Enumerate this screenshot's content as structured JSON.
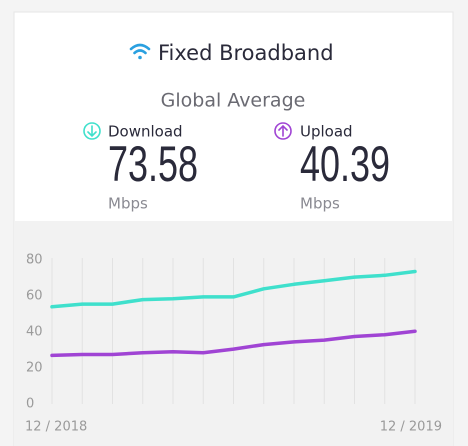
{
  "header": {
    "title": "Fixed Broadband",
    "subtitle": "Global Average"
  },
  "summary": [
    {
      "label": "Download",
      "value": "73.58",
      "unit": "Mbps"
    },
    {
      "label": "Upload",
      "value": "40.39",
      "unit": "Mbps"
    }
  ],
  "chart_data": {
    "type": "line",
    "categories": [
      "12 / 2018",
      null,
      null,
      null,
      null,
      null,
      null,
      null,
      null,
      null,
      null,
      null,
      "12 / 2019"
    ],
    "series": [
      {
        "color": "#3fe0cc",
        "values": [
          54,
          55.5,
          55.5,
          58,
          58.5,
          59.5,
          59.5,
          64,
          66.5,
          68.5,
          70.5,
          71.5,
          73.6
        ]
      },
      {
        "color": "#a044d4",
        "values": [
          27,
          27.5,
          27.5,
          28.5,
          29,
          28.5,
          30.5,
          33,
          34.5,
          35.5,
          37.5,
          38.5,
          40.4
        ]
      }
    ],
    "ylim": [
      0,
      80
    ],
    "yticks": [
      0,
      20,
      40,
      60,
      80
    ],
    "grid": true
  }
}
